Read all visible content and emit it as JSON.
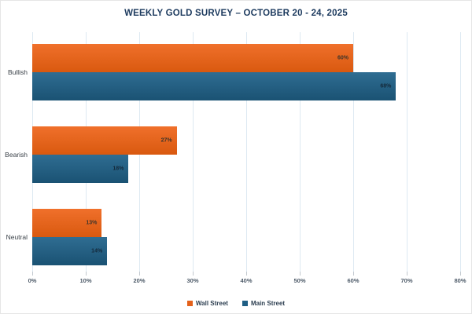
{
  "title": "WEEKLY GOLD SURVEY – OCTOBER 20 - 24, 2025",
  "chart_data": {
    "type": "bar",
    "orientation": "horizontal",
    "title": "WEEKLY GOLD SURVEY – OCTOBER 20 - 24, 2025",
    "categories": [
      "Bullish",
      "Bearish",
      "Neutral"
    ],
    "series": [
      {
        "name": "Wall Street",
        "color": "#E4611A",
        "color_top": "#F0702B",
        "color_bottom": "#D9590F",
        "label_color": "#3d342b",
        "values": [
          60,
          27,
          13
        ]
      },
      {
        "name": "Main Street",
        "color": "#1F5E84",
        "color_top": "#2F6D92",
        "color_bottom": "#1A5273",
        "label_color": "#14293a",
        "values": [
          68,
          18,
          14
        ]
      }
    ],
    "value_suffix": "%",
    "xlim": [
      0,
      80
    ],
    "x_ticks": [
      "0%",
      "10%",
      "20%",
      "30%",
      "40%",
      "50%",
      "60%",
      "70%",
      "80%"
    ],
    "grid": true,
    "legend_position": "bottom-center"
  }
}
